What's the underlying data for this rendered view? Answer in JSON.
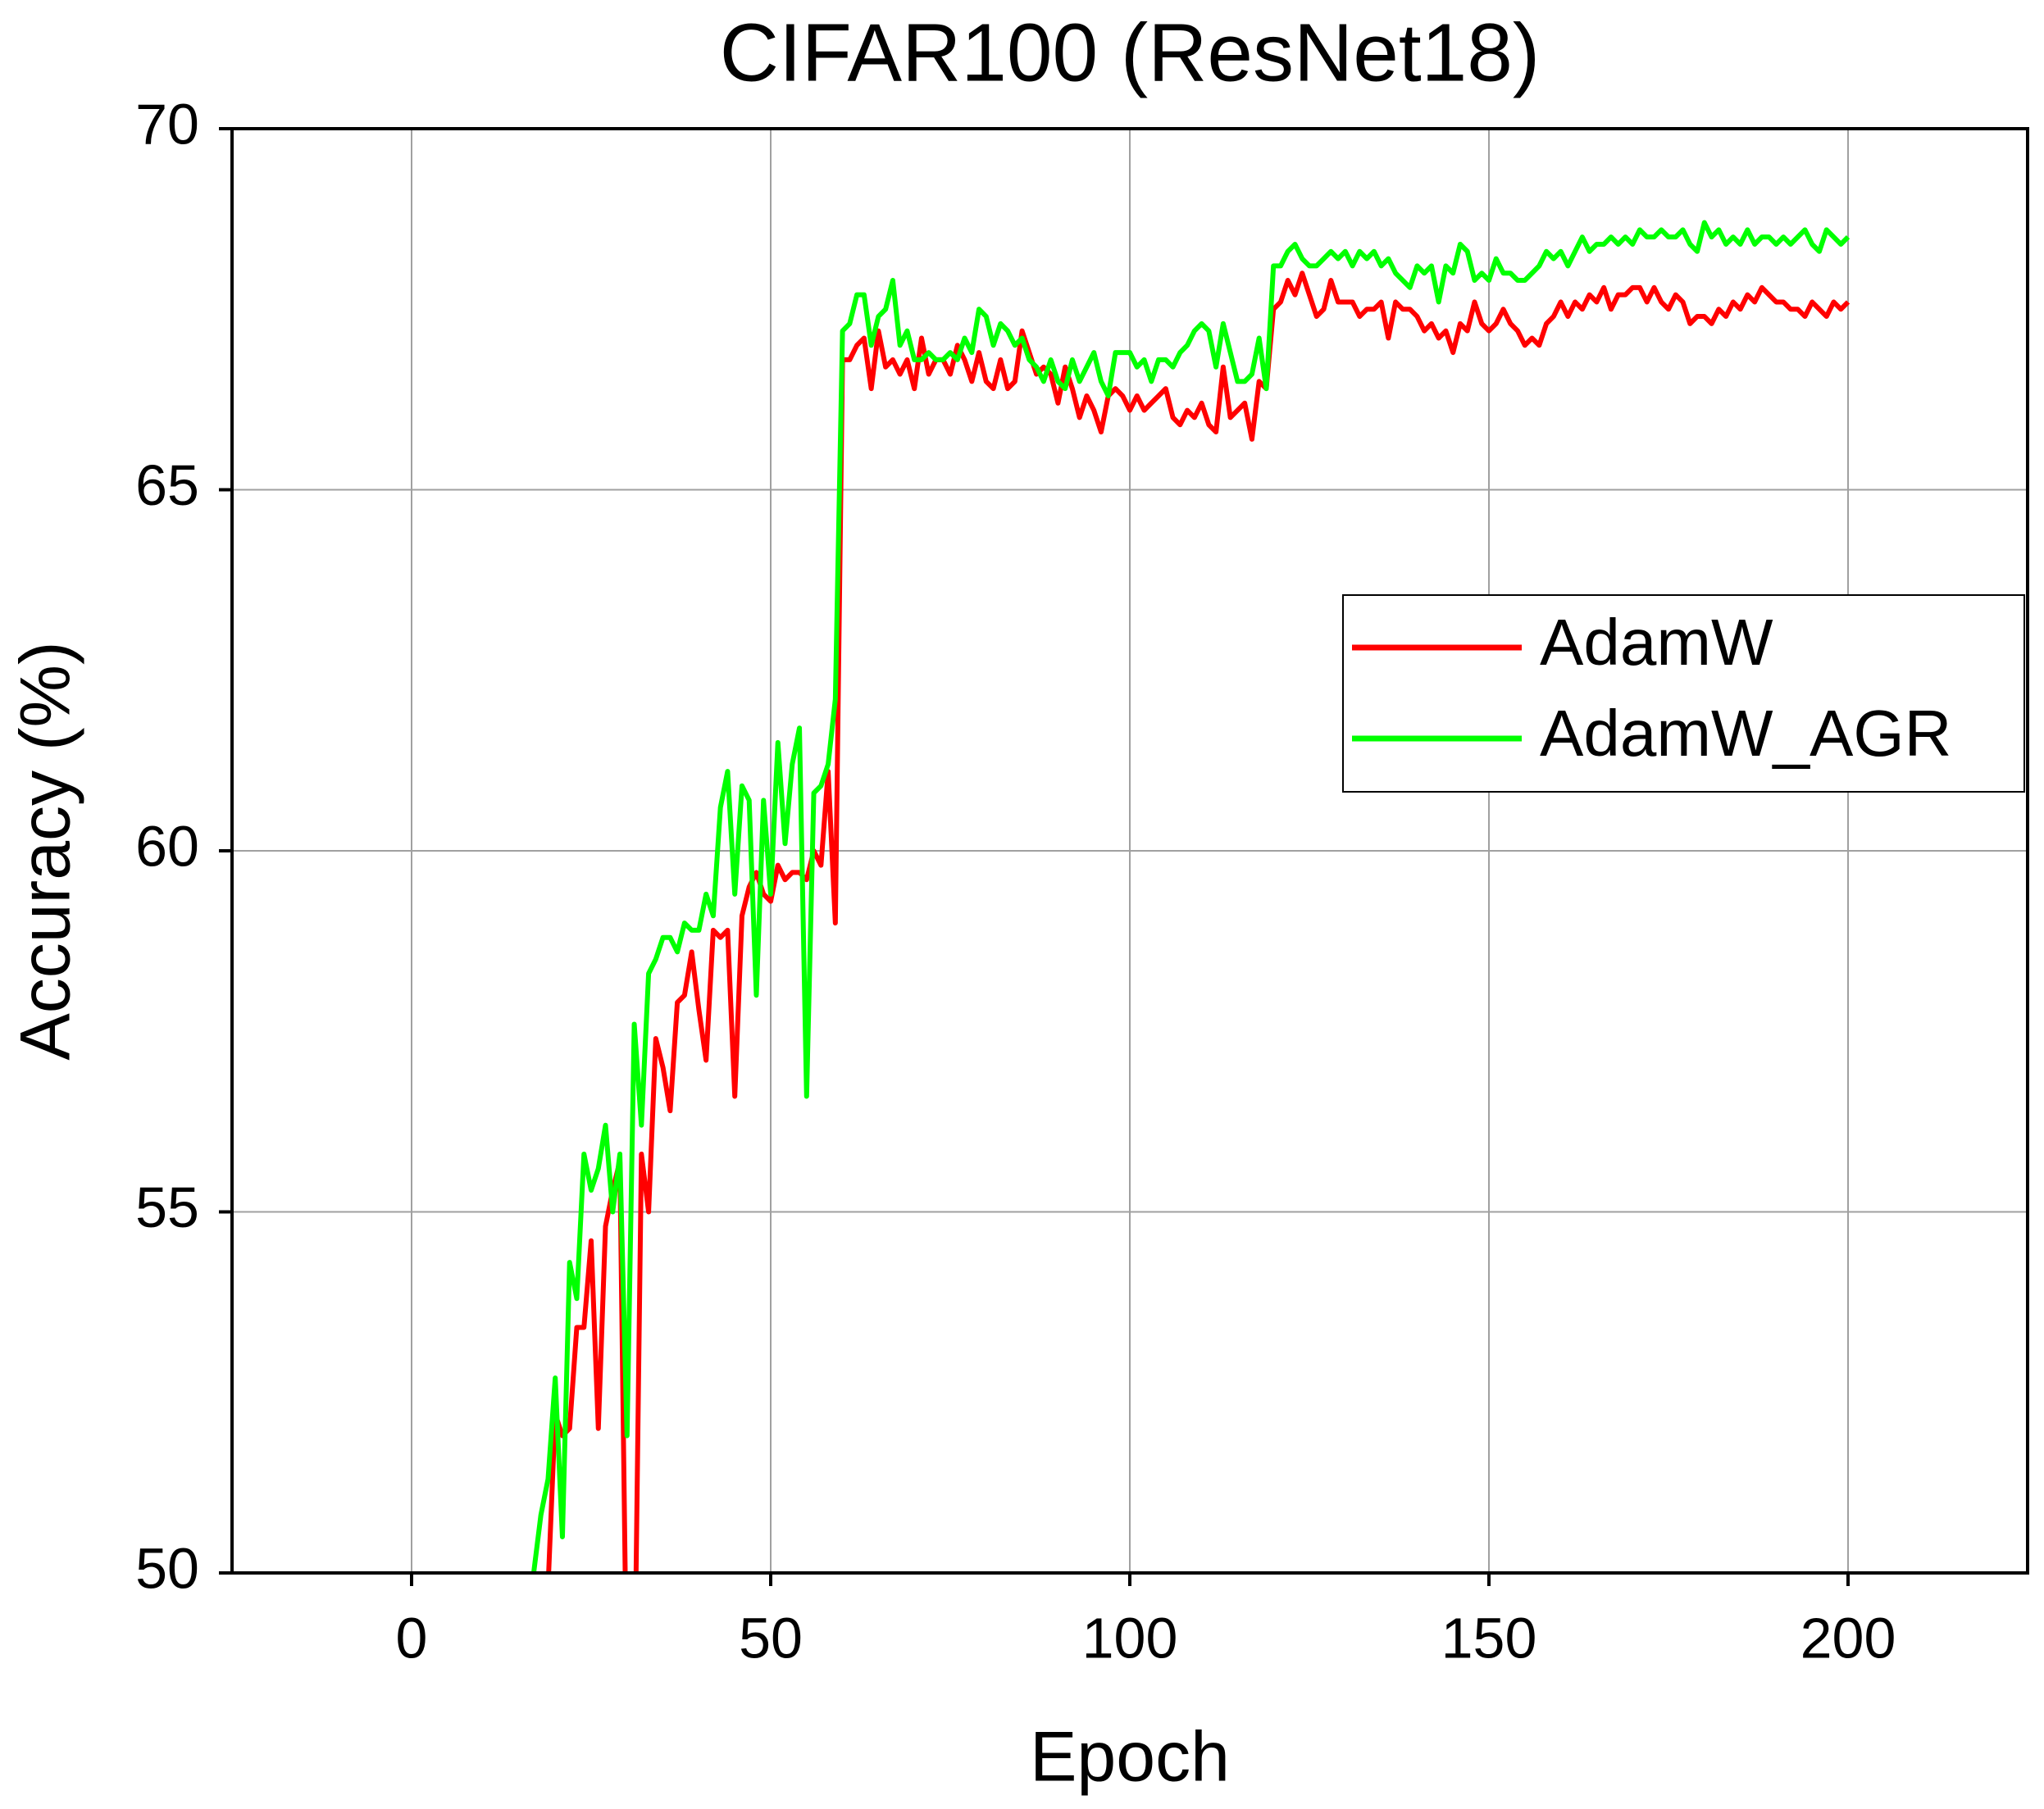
{
  "chart_data": {
    "type": "line",
    "title": "CIFAR100 (ResNet18)",
    "x_label": "Epoch",
    "y_label": "Accuracy (%)",
    "xlim": [
      -25,
      225
    ],
    "ylim": [
      50,
      70
    ],
    "xticks": [
      0,
      50,
      100,
      150,
      200
    ],
    "yticks": [
      50,
      55,
      60,
      65,
      70
    ],
    "grid": true,
    "legend": "right",
    "x": [
      17,
      18,
      19,
      20,
      21,
      22,
      23,
      24,
      25,
      26,
      27,
      28,
      29,
      30,
      31,
      32,
      33,
      34,
      35,
      36,
      37,
      38,
      39,
      40,
      41,
      42,
      43,
      44,
      45,
      46,
      47,
      48,
      49,
      50,
      51,
      52,
      53,
      54,
      55,
      56,
      57,
      58,
      59,
      60,
      61,
      62,
      63,
      64,
      65,
      66,
      67,
      68,
      69,
      70,
      71,
      72,
      73,
      74,
      75,
      76,
      77,
      78,
      79,
      80,
      81,
      82,
      83,
      84,
      85,
      86,
      87,
      88,
      89,
      90,
      91,
      92,
      93,
      94,
      95,
      96,
      97,
      98,
      99,
      100,
      101,
      102,
      103,
      104,
      105,
      106,
      107,
      108,
      109,
      110,
      111,
      112,
      113,
      114,
      115,
      116,
      117,
      118,
      119,
      120,
      121,
      122,
      123,
      124,
      125,
      126,
      127,
      128,
      129,
      130,
      131,
      132,
      133,
      134,
      135,
      136,
      137,
      138,
      139,
      140,
      141,
      142,
      143,
      144,
      145,
      146,
      147,
      148,
      149,
      150,
      151,
      152,
      153,
      154,
      155,
      156,
      157,
      158,
      159,
      160,
      161,
      162,
      163,
      164,
      165,
      166,
      167,
      168,
      169,
      170,
      171,
      172,
      173,
      174,
      175,
      176,
      177,
      178,
      179,
      180,
      181,
      182,
      183,
      184,
      185,
      186,
      187,
      188,
      189,
      190,
      191,
      192,
      193,
      194,
      195,
      196,
      197,
      198,
      199,
      200
    ],
    "series": [
      {
        "name": "AdamW",
        "color": "#ff0000",
        "values": [
          48,
          48.5,
          49.8,
          52.2,
          51.9,
          52.0,
          53.4,
          53.4,
          54.6,
          52.0,
          54.8,
          55.3,
          55.7,
          48,
          48,
          55.8,
          55.0,
          57.4,
          57.0,
          56.4,
          57.9,
          58.0,
          58.6,
          57.8,
          57.1,
          58.9,
          58.8,
          58.9,
          56.6,
          59.1,
          59.5,
          59.7,
          59.4,
          59.3,
          59.8,
          59.6,
          59.7,
          59.7,
          59.6,
          60.0,
          59.8,
          61.1,
          59.0,
          66.8,
          66.8,
          67.0,
          67.1,
          66.4,
          67.2,
          66.7,
          66.8,
          66.6,
          66.8,
          66.4,
          67.1,
          66.6,
          66.8,
          66.8,
          66.6,
          67.0,
          66.8,
          66.5,
          66.9,
          66.5,
          66.4,
          66.8,
          66.4,
          66.5,
          67.2,
          66.9,
          66.6,
          66.7,
          66.6,
          66.2,
          66.7,
          66.4,
          66.0,
          66.3,
          66.1,
          65.8,
          66.3,
          66.4,
          66.3,
          66.1,
          66.3,
          66.1,
          66.2,
          66.3,
          66.4,
          66.0,
          65.9,
          66.1,
          66.0,
          66.2,
          65.9,
          65.8,
          66.7,
          66.0,
          66.1,
          66.2,
          65.7,
          66.5,
          66.4,
          67.5,
          67.6,
          67.9,
          67.7,
          68.0,
          67.7,
          67.4,
          67.5,
          67.9,
          67.6,
          67.6,
          67.6,
          67.4,
          67.5,
          67.5,
          67.6,
          67.1,
          67.6,
          67.5,
          67.5,
          67.4,
          67.2,
          67.3,
          67.1,
          67.2,
          66.9,
          67.3,
          67.2,
          67.6,
          67.3,
          67.2,
          67.3,
          67.5,
          67.3,
          67.2,
          67.0,
          67.1,
          67.0,
          67.3,
          67.4,
          67.6,
          67.4,
          67.6,
          67.5,
          67.7,
          67.6,
          67.8,
          67.5,
          67.7,
          67.7,
          67.8,
          67.8,
          67.6,
          67.8,
          67.6,
          67.5,
          67.7,
          67.6,
          67.3,
          67.4,
          67.4,
          67.3,
          67.5,
          67.4,
          67.6,
          67.5,
          67.7,
          67.6,
          67.8,
          67.7,
          67.6,
          67.6,
          67.5,
          67.5,
          67.4,
          67.6,
          67.5,
          67.4,
          67.6,
          67.5,
          67.6
        ]
      },
      {
        "name": "AdamW_AGR",
        "color": "#00ff00",
        "values": [
          50.0,
          50.8,
          51.3,
          52.7,
          50.5,
          54.3,
          53.8,
          55.8,
          55.3,
          55.6,
          56.2,
          55.0,
          55.8,
          51.9,
          57.6,
          56.2,
          58.3,
          58.5,
          58.8,
          58.8,
          58.6,
          59.0,
          58.9,
          58.9,
          59.4,
          59.1,
          60.6,
          61.1,
          59.4,
          60.9,
          60.7,
          58.0,
          60.7,
          59.4,
          61.5,
          60.1,
          61.2,
          61.7,
          56.6,
          60.8,
          60.9,
          61.2,
          62.1,
          67.2,
          67.3,
          67.7,
          67.7,
          67.0,
          67.4,
          67.5,
          67.9,
          67.0,
          67.2,
          66.8,
          66.8,
          66.9,
          66.8,
          66.8,
          66.9,
          66.8,
          67.1,
          66.9,
          67.5,
          67.4,
          67.0,
          67.3,
          67.2,
          67.0,
          67.1,
          66.8,
          66.7,
          66.5,
          66.8,
          66.5,
          66.4,
          66.8,
          66.5,
          66.7,
          66.9,
          66.5,
          66.3,
          66.9,
          66.9,
          66.9,
          66.7,
          66.8,
          66.5,
          66.8,
          66.8,
          66.7,
          66.9,
          67.0,
          67.2,
          67.3,
          67.2,
          66.7,
          67.3,
          66.9,
          66.5,
          66.5,
          66.6,
          67.1,
          66.4,
          68.1,
          68.1,
          68.3,
          68.4,
          68.2,
          68.1,
          68.1,
          68.2,
          68.3,
          68.2,
          68.3,
          68.1,
          68.3,
          68.2,
          68.3,
          68.1,
          68.2,
          68.0,
          67.9,
          67.8,
          68.1,
          68.0,
          68.1,
          67.6,
          68.1,
          68.0,
          68.4,
          68.3,
          67.9,
          68.0,
          67.9,
          68.2,
          68.0,
          68.0,
          67.9,
          67.9,
          68.0,
          68.1,
          68.3,
          68.2,
          68.3,
          68.1,
          68.3,
          68.5,
          68.3,
          68.4,
          68.4,
          68.5,
          68.4,
          68.5,
          68.4,
          68.6,
          68.5,
          68.5,
          68.6,
          68.5,
          68.5,
          68.6,
          68.4,
          68.3,
          68.7,
          68.5,
          68.6,
          68.4,
          68.5,
          68.4,
          68.6,
          68.4,
          68.5,
          68.5,
          68.4,
          68.5,
          68.4,
          68.5,
          68.6,
          68.4,
          68.3,
          68.6,
          68.5,
          68.4,
          68.5
        ]
      }
    ]
  }
}
